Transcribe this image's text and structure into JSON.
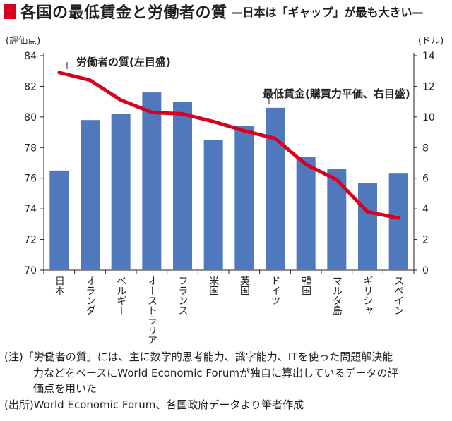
{
  "title": {
    "main": "各国の最低賃金と労働者の質",
    "subtitle": "—日本は「ギャップ」が最も大きい—",
    "accent_color": "#d7001f"
  },
  "chart_data": {
    "type": "bar+line",
    "categories": [
      "日本",
      "オランダ",
      "ベルギー",
      "オーストラリア",
      "フランス",
      "米国",
      "英国",
      "ドイツ",
      "韓国",
      "マルタ島",
      "ギリシャ",
      "スペイン"
    ],
    "series": [
      {
        "name": "最低賃金(購買力平価、右目盛)",
        "type": "bar",
        "axis": "right",
        "color": "#4f79bc",
        "values": [
          6.5,
          9.8,
          10.2,
          11.6,
          11.0,
          8.5,
          9.4,
          10.6,
          7.4,
          6.6,
          5.7,
          6.3
        ]
      },
      {
        "name": "労働者の質(左目盛)",
        "type": "line",
        "axis": "left",
        "color": "#d7001f",
        "values": [
          82.9,
          82.4,
          81.1,
          80.3,
          80.2,
          79.7,
          79.1,
          78.6,
          76.9,
          75.9,
          73.8,
          73.4
        ]
      }
    ],
    "left_axis": {
      "unit": "(評価点)",
      "min": 70,
      "max": 84,
      "ticks": [
        70,
        72,
        74,
        76,
        78,
        80,
        82,
        84
      ]
    },
    "right_axis": {
      "unit": "(ドル)",
      "min": 0,
      "max": 14,
      "ticks": [
        0,
        2,
        4,
        6,
        8,
        10,
        12,
        14
      ]
    },
    "grid": false
  },
  "notes": {
    "note_label": "(注)",
    "note_text_1": "「労働者の質」には、主に数学的思考能力、識字能力、ITを使った問題解決能",
    "note_text_2": "力などをベースにWorld Economic Forumが独自に算出しているデータの評",
    "note_text_3": "価点を用いた",
    "source_label": "(出所)",
    "source_text": "World Economic Forum、各国政府データより筆者作成"
  }
}
